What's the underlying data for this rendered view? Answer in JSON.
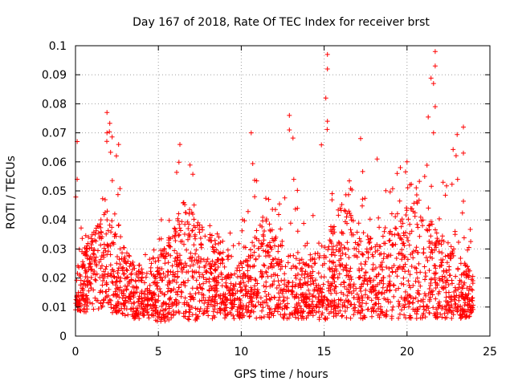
{
  "chart_data": {
    "type": "scatter",
    "title": "Day 167 of 2018, Rate Of TEC Index for receiver brst",
    "xlabel": "GPS time / hours",
    "ylabel": "ROTI / TECUs",
    "xlim": [
      0,
      25
    ],
    "ylim": [
      0,
      0.1
    ],
    "xticks": [
      0,
      5,
      10,
      15,
      20,
      25
    ],
    "xtick_labels": [
      "0",
      "5",
      "10",
      "15",
      "20",
      "25"
    ],
    "yticks": [
      0,
      0.01,
      0.02,
      0.03,
      0.04,
      0.05,
      0.06,
      0.07,
      0.08,
      0.09,
      0.1
    ],
    "ytick_labels": [
      "0",
      "0.01",
      "0.02",
      "0.03",
      "0.04",
      "0.05",
      "0.06",
      "0.07",
      "0.08",
      "0.09",
      "0.1"
    ],
    "grid": true,
    "marker": "+",
    "marker_color": "#ff0000",
    "series": [
      {
        "name": "ROTI",
        "envelope": {
          "x": [
            0,
            0.5,
            1,
            1.5,
            2,
            2.5,
            3,
            3.5,
            4,
            4.5,
            5,
            5.5,
            6,
            6.5,
            7,
            7.5,
            8,
            8.5,
            9,
            9.5,
            10,
            10.5,
            11,
            11.5,
            12,
            12.5,
            13,
            13.5,
            14,
            14.5,
            15,
            15.5,
            16,
            16.5,
            17,
            17.5,
            18,
            18.5,
            19,
            19.5,
            20,
            20.5,
            21,
            21.5,
            22,
            22.5,
            23,
            23.5,
            24
          ],
          "low": [
            0.008,
            0.008,
            0.009,
            0.009,
            0.008,
            0.008,
            0.007,
            0.006,
            0.006,
            0.006,
            0.005,
            0.005,
            0.006,
            0.006,
            0.005,
            0.006,
            0.006,
            0.006,
            0.006,
            0.006,
            0.006,
            0.006,
            0.006,
            0.006,
            0.006,
            0.006,
            0.006,
            0.006,
            0.006,
            0.006,
            0.005,
            0.006,
            0.006,
            0.006,
            0.006,
            0.006,
            0.006,
            0.006,
            0.006,
            0.006,
            0.006,
            0.006,
            0.006,
            0.006,
            0.006,
            0.006,
            0.006,
            0.006,
            0.007
          ],
          "typical": [
            0.014,
            0.02,
            0.026,
            0.03,
            0.024,
            0.022,
            0.018,
            0.014,
            0.012,
            0.016,
            0.014,
            0.018,
            0.022,
            0.026,
            0.024,
            0.022,
            0.02,
            0.02,
            0.018,
            0.016,
            0.014,
            0.016,
            0.022,
            0.024,
            0.02,
            0.018,
            0.016,
            0.016,
            0.014,
            0.016,
            0.018,
            0.022,
            0.026,
            0.024,
            0.022,
            0.02,
            0.018,
            0.02,
            0.022,
            0.024,
            0.026,
            0.028,
            0.024,
            0.022,
            0.02,
            0.018,
            0.016,
            0.014,
            0.012
          ],
          "high": [
            0.066,
            0.036,
            0.035,
            0.04,
            0.077,
            0.066,
            0.03,
            0.027,
            0.025,
            0.035,
            0.037,
            0.053,
            0.06,
            0.066,
            0.058,
            0.047,
            0.04,
            0.04,
            0.037,
            0.04,
            0.038,
            0.07,
            0.055,
            0.05,
            0.045,
            0.05,
            0.076,
            0.046,
            0.04,
            0.045,
            0.097,
            0.048,
            0.05,
            0.06,
            0.068,
            0.055,
            0.05,
            0.062,
            0.05,
            0.058,
            0.06,
            0.057,
            0.055,
            0.099,
            0.055,
            0.055,
            0.072,
            0.045,
            0.045
          ]
        },
        "spikes": [
          {
            "x": 0.1,
            "y": 0.067
          },
          {
            "x": 0.1,
            "y": 0.054
          },
          {
            "x": 1.9,
            "y": 0.077
          },
          {
            "x": 1.9,
            "y": 0.07
          },
          {
            "x": 2.6,
            "y": 0.066
          },
          {
            "x": 6.3,
            "y": 0.066
          },
          {
            "x": 10.6,
            "y": 0.07
          },
          {
            "x": 12.9,
            "y": 0.076
          },
          {
            "x": 12.9,
            "y": 0.071
          },
          {
            "x": 15.2,
            "y": 0.097
          },
          {
            "x": 15.2,
            "y": 0.092
          },
          {
            "x": 15.1,
            "y": 0.082
          },
          {
            "x": 15.2,
            "y": 0.074
          },
          {
            "x": 17.2,
            "y": 0.068
          },
          {
            "x": 18.2,
            "y": 0.061
          },
          {
            "x": 21.7,
            "y": 0.098
          },
          {
            "x": 21.7,
            "y": 0.093
          },
          {
            "x": 21.6,
            "y": 0.087
          },
          {
            "x": 21.7,
            "y": 0.079
          },
          {
            "x": 21.6,
            "y": 0.07
          },
          {
            "x": 23.4,
            "y": 0.072
          },
          {
            "x": 23.4,
            "y": 0.063
          },
          {
            "x": 20.0,
            "y": 0.06
          },
          {
            "x": 19.6,
            "y": 0.058
          }
        ]
      }
    ]
  }
}
